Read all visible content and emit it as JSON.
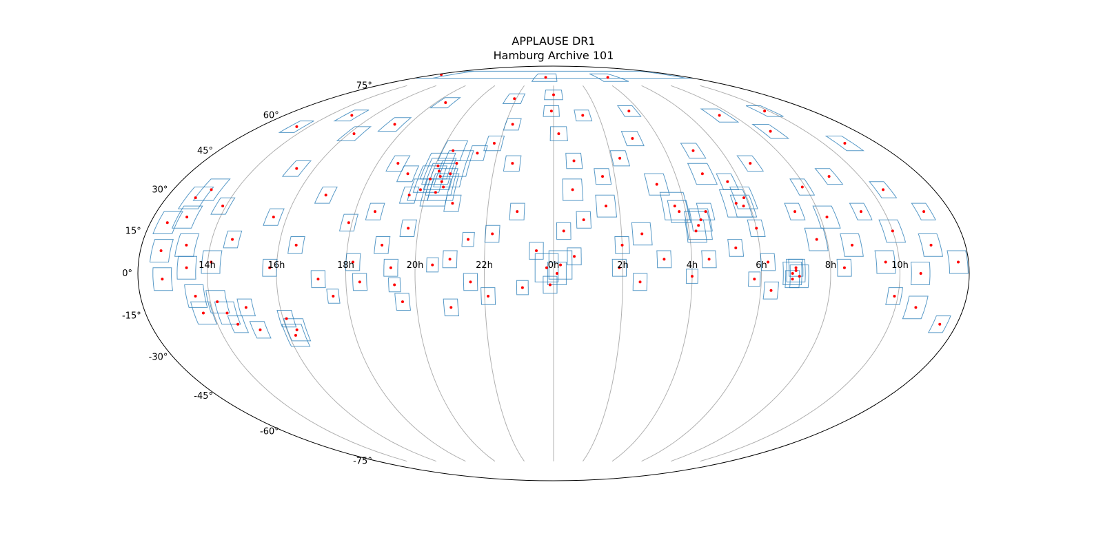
{
  "chart_data": {
    "type": "scatter",
    "projection": "mollweide",
    "title": "APPLAUSE DR1",
    "subtitle": "Hamburg Archive 101",
    "grid": true,
    "x_ticks": [
      "14h",
      "16h",
      "18h",
      "20h",
      "22h",
      "0h",
      "2h",
      "4h",
      "6h",
      "8h",
      "10h"
    ],
    "x_tick_values_hours": [
      14,
      16,
      18,
      20,
      22,
      0,
      2,
      4,
      6,
      8,
      10
    ],
    "y_ticks": [
      "-75°",
      "-60°",
      "-45°",
      "-30°",
      "-15°",
      "0°",
      "15°",
      "30°",
      "45°",
      "60°",
      "75°"
    ],
    "y_tick_values": [
      -75,
      -60,
      -45,
      -30,
      -15,
      0,
      15,
      30,
      45,
      60,
      75
    ],
    "colors": {
      "footprint": "#1f77b4",
      "center": "#ff0000",
      "grid": "#b0b0b0",
      "frame": "#000000"
    },
    "plates_ra_hours_dec_deg_size_deg": [
      [
        20.3,
        35,
        10
      ],
      [
        20.4,
        33,
        10
      ],
      [
        20.2,
        37,
        10
      ],
      [
        20.5,
        31,
        10
      ],
      [
        20.1,
        39,
        10
      ],
      [
        20.6,
        36,
        10
      ],
      [
        20.3,
        29,
        10
      ],
      [
        20.0,
        34,
        10
      ],
      [
        20.7,
        40,
        10
      ],
      [
        19.8,
        30,
        8
      ],
      [
        20.4,
        45,
        8
      ],
      [
        19.5,
        28,
        6
      ],
      [
        20.9,
        25,
        6
      ],
      [
        21.3,
        44,
        6
      ],
      [
        19.2,
        36,
        6
      ],
      [
        21.8,
        48,
        6
      ],
      [
        22.3,
        56,
        5
      ],
      [
        22.6,
        40,
        6
      ],
      [
        22.9,
        22,
        6
      ],
      [
        22.2,
        14,
        6
      ],
      [
        21.5,
        12,
        5
      ],
      [
        21.0,
        5,
        6
      ],
      [
        20.5,
        3,
        5
      ],
      [
        21.6,
        -3,
        6
      ],
      [
        22.1,
        -8,
        6
      ],
      [
        23.1,
        -5,
        5
      ],
      [
        23.5,
        8,
        6
      ],
      [
        23.8,
        2,
        10
      ],
      [
        0.2,
        3,
        10
      ],
      [
        0.1,
        0,
        8
      ],
      [
        23.9,
        -4,
        6
      ],
      [
        0.6,
        6,
        6
      ],
      [
        0.3,
        15,
        6
      ],
      [
        0.9,
        19,
        6
      ],
      [
        0.6,
        30,
        8
      ],
      [
        0.7,
        41,
        6
      ],
      [
        0.2,
        52,
        6
      ],
      [
        23.9,
        62,
        5
      ],
      [
        0.0,
        70,
        5
      ],
      [
        1.3,
        60,
        5
      ],
      [
        1.6,
        35,
        6
      ],
      [
        1.6,
        24,
        8
      ],
      [
        2.3,
        42,
        6
      ],
      [
        2.0,
        10,
        6
      ],
      [
        1.9,
        2,
        6
      ],
      [
        2.5,
        -3,
        6
      ],
      [
        2.6,
        14,
        8
      ],
      [
        3.2,
        5,
        6
      ],
      [
        3.0,
        50,
        6
      ],
      [
        3.3,
        32,
        8
      ],
      [
        3.7,
        24,
        10
      ],
      [
        3.8,
        22,
        8
      ],
      [
        4.3,
        17,
        10
      ],
      [
        4.4,
        19,
        8
      ],
      [
        4.2,
        15,
        8
      ],
      [
        4.6,
        22,
        6
      ],
      [
        4.0,
        -1,
        5
      ],
      [
        4.5,
        5,
        6
      ],
      [
        4.9,
        36,
        8
      ],
      [
        5.0,
        45,
        6
      ],
      [
        5.3,
        9,
        6
      ],
      [
        5.6,
        25,
        10
      ],
      [
        5.8,
        24,
        8
      ],
      [
        5.9,
        27,
        8
      ],
      [
        5.6,
        33,
        6
      ],
      [
        6.0,
        16,
        6
      ],
      [
        6.2,
        4,
        6
      ],
      [
        5.8,
        -2,
        5
      ],
      [
        6.3,
        -6,
        6
      ],
      [
        6.7,
        40,
        6
      ],
      [
        6.9,
        0,
        8
      ],
      [
        7.0,
        1,
        8
      ],
      [
        7.1,
        -1,
        8
      ],
      [
        7.0,
        2,
        6
      ],
      [
        6.9,
        -2,
        6
      ],
      [
        7.3,
        22,
        6
      ],
      [
        7.7,
        12,
        8
      ],
      [
        7.9,
        31,
        6
      ],
      [
        8.2,
        20,
        8
      ],
      [
        8.6,
        53,
        6
      ],
      [
        8.4,
        2,
        6
      ],
      [
        8.7,
        10,
        8
      ],
      [
        9.0,
        35,
        6
      ],
      [
        9.3,
        22,
        6
      ],
      [
        9.6,
        4,
        8
      ],
      [
        9.9,
        -8,
        6
      ],
      [
        10.0,
        15,
        8
      ],
      [
        10.4,
        30,
        6
      ],
      [
        10.6,
        0,
        8
      ],
      [
        10.6,
        -12,
        8
      ],
      [
        11.0,
        10,
        8
      ],
      [
        11.2,
        22,
        6
      ],
      [
        11.5,
        -18,
        6
      ],
      [
        11.7,
        4,
        8
      ],
      [
        12.0,
        25,
        8
      ],
      [
        12.2,
        12,
        8
      ],
      [
        12.3,
        28,
        8
      ],
      [
        12.5,
        18,
        8
      ],
      [
        12.6,
        8,
        8
      ],
      [
        12.7,
        -2,
        8
      ],
      [
        12.9,
        27,
        8
      ],
      [
        13.0,
        20,
        8
      ],
      [
        13.2,
        30,
        8
      ],
      [
        13.3,
        10,
        8
      ],
      [
        13.4,
        2,
        8
      ],
      [
        13.6,
        -8,
        8
      ],
      [
        13.7,
        -14,
        8
      ],
      [
        13.9,
        24,
        6
      ],
      [
        14.1,
        4,
        8
      ],
      [
        14.2,
        -10,
        8
      ],
      [
        14.4,
        -14,
        8
      ],
      [
        14.6,
        -18,
        6
      ],
      [
        14.6,
        12,
        6
      ],
      [
        15.0,
        -12,
        6
      ],
      [
        15.2,
        -20,
        6
      ],
      [
        15.4,
        38,
        6
      ],
      [
        15.6,
        20,
        6
      ],
      [
        15.8,
        2,
        6
      ],
      [
        16.1,
        -16,
        6
      ],
      [
        16.3,
        -20,
        8
      ],
      [
        16.2,
        -22,
        8
      ],
      [
        16.5,
        10,
        6
      ],
      [
        16.9,
        28,
        6
      ],
      [
        17.2,
        -2,
        6
      ],
      [
        17.6,
        -8,
        5
      ],
      [
        17.9,
        18,
        6
      ],
      [
        18.2,
        4,
        6
      ],
      [
        18.4,
        -3,
        6
      ],
      [
        18.6,
        22,
        6
      ],
      [
        18.7,
        40,
        6
      ],
      [
        19.0,
        10,
        6
      ],
      [
        19.3,
        2,
        6
      ],
      [
        19.4,
        -4,
        5
      ],
      [
        19.6,
        -10,
        6
      ],
      [
        19.7,
        16,
        6
      ],
      [
        21.0,
        -12,
        6
      ],
      [
        17.4,
        56,
        6
      ],
      [
        16.2,
        52,
        6
      ],
      [
        15.0,
        60,
        5
      ],
      [
        13.5,
        55,
        5
      ],
      [
        12.2,
        50,
        6
      ],
      [
        10.8,
        48,
        6
      ],
      [
        9.8,
        62,
        5
      ],
      [
        7.4,
        60,
        6
      ],
      [
        3.5,
        62,
        5
      ],
      [
        18.5,
        66,
        5
      ],
      [
        21.9,
        68,
        5
      ],
      [
        23.3,
        80,
        5
      ],
      [
        4.8,
        80,
        5
      ],
      [
        12.5,
        82,
        5
      ]
    ]
  }
}
